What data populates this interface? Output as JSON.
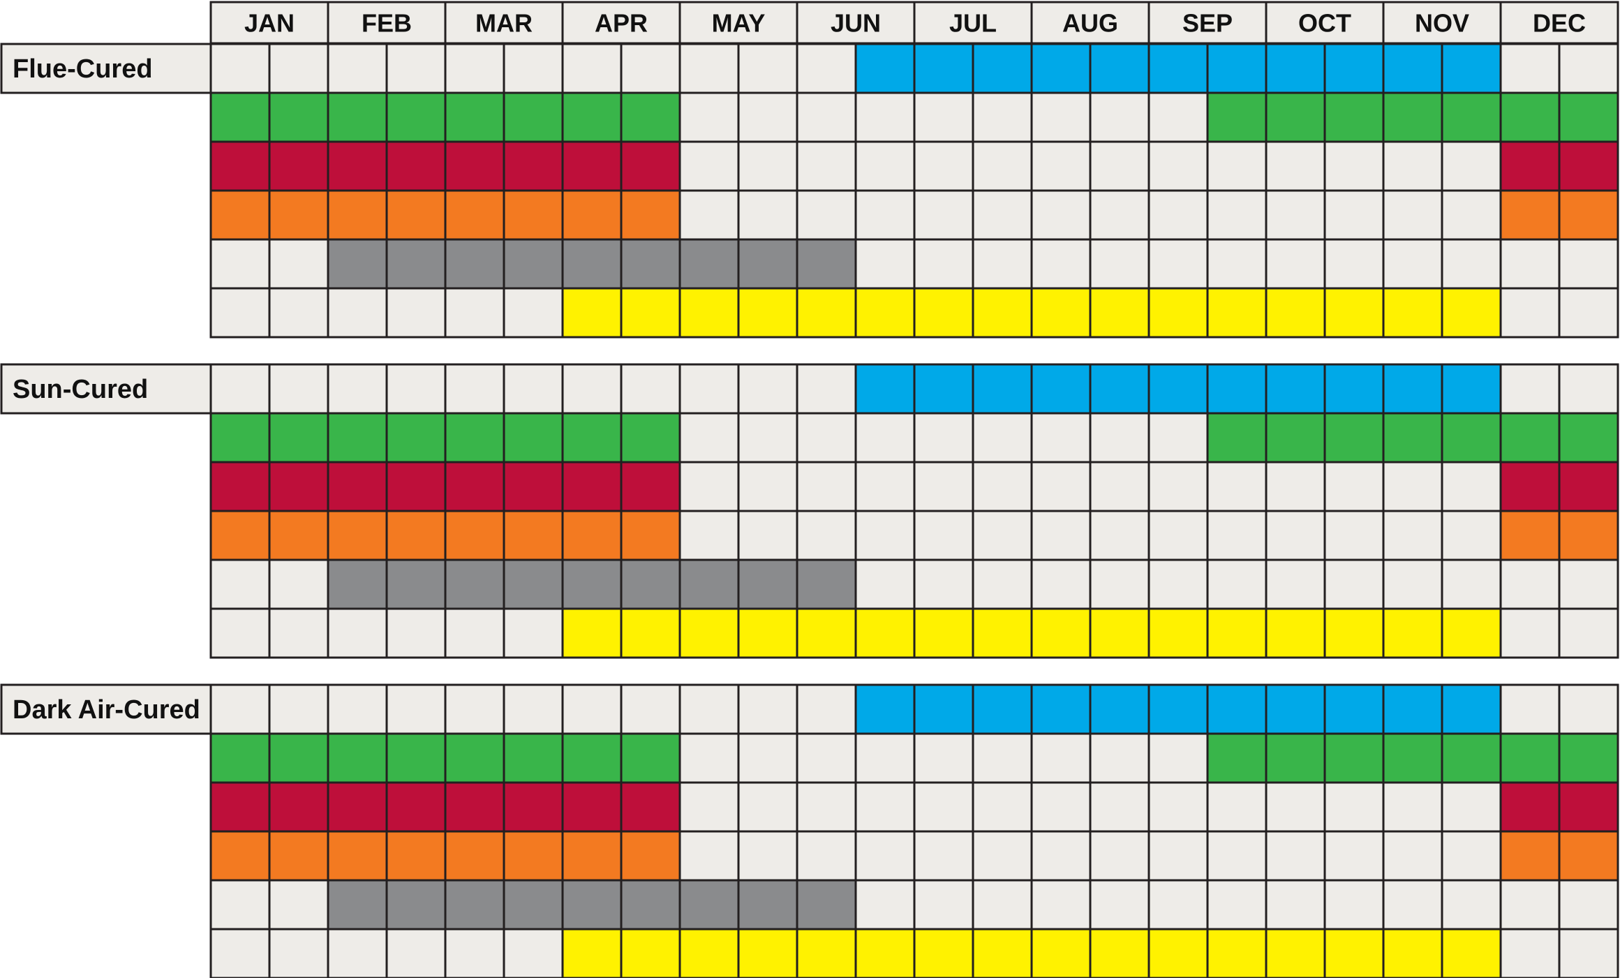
{
  "chart_data": {
    "type": "table",
    "months": [
      "JAN",
      "FEB",
      "MAR",
      "APR",
      "MAY",
      "JUN",
      "JUL",
      "AUG",
      "SEP",
      "OCT",
      "NOV",
      "DEC"
    ],
    "half_months_per_month": 2,
    "empty_color": "#eeece8",
    "grid_color": "#231f20",
    "label_background": "#eeece8",
    "groups": [
      {
        "label": "Flue-Cured",
        "rows": [
          {
            "color": "#00a9e8",
            "active": [
              11,
              12,
              13,
              14,
              15,
              16,
              17,
              18,
              19,
              20,
              21
            ]
          },
          {
            "color": "#39b54a",
            "active": [
              0,
              1,
              2,
              3,
              4,
              5,
              6,
              7,
              17,
              18,
              19,
              20,
              21,
              22,
              23
            ]
          },
          {
            "color": "#be0f3a",
            "active": [
              0,
              1,
              2,
              3,
              4,
              5,
              6,
              7,
              22,
              23
            ]
          },
          {
            "color": "#f37a21",
            "active": [
              0,
              1,
              2,
              3,
              4,
              5,
              6,
              7,
              22,
              23
            ]
          },
          {
            "color": "#8a8b8d",
            "active": [
              2,
              3,
              4,
              5,
              6,
              7,
              8,
              9,
              10
            ]
          },
          {
            "color": "#fff200",
            "active": [
              6,
              7,
              8,
              9,
              10,
              11,
              12,
              13,
              14,
              15,
              16,
              17,
              18,
              19,
              20,
              21
            ]
          }
        ]
      },
      {
        "label": "Sun-Cured",
        "rows": [
          {
            "color": "#00a9e8",
            "active": [
              11,
              12,
              13,
              14,
              15,
              16,
              17,
              18,
              19,
              20,
              21
            ]
          },
          {
            "color": "#39b54a",
            "active": [
              0,
              1,
              2,
              3,
              4,
              5,
              6,
              7,
              17,
              18,
              19,
              20,
              21,
              22,
              23
            ]
          },
          {
            "color": "#be0f3a",
            "active": [
              0,
              1,
              2,
              3,
              4,
              5,
              6,
              7,
              22,
              23
            ]
          },
          {
            "color": "#f37a21",
            "active": [
              0,
              1,
              2,
              3,
              4,
              5,
              6,
              7,
              22,
              23
            ]
          },
          {
            "color": "#8a8b8d",
            "active": [
              2,
              3,
              4,
              5,
              6,
              7,
              8,
              9,
              10
            ]
          },
          {
            "color": "#fff200",
            "active": [
              6,
              7,
              8,
              9,
              10,
              11,
              12,
              13,
              14,
              15,
              16,
              17,
              18,
              19,
              20,
              21
            ]
          }
        ]
      },
      {
        "label": "Dark Air-Cured",
        "rows": [
          {
            "color": "#00a9e8",
            "active": [
              11,
              12,
              13,
              14,
              15,
              16,
              17,
              18,
              19,
              20,
              21
            ]
          },
          {
            "color": "#39b54a",
            "active": [
              0,
              1,
              2,
              3,
              4,
              5,
              6,
              7,
              17,
              18,
              19,
              20,
              21,
              22,
              23
            ]
          },
          {
            "color": "#be0f3a",
            "active": [
              0,
              1,
              2,
              3,
              4,
              5,
              6,
              7,
              22,
              23
            ]
          },
          {
            "color": "#f37a21",
            "active": [
              0,
              1,
              2,
              3,
              4,
              5,
              6,
              7,
              22,
              23
            ]
          },
          {
            "color": "#8a8b8d",
            "active": [
              2,
              3,
              4,
              5,
              6,
              7,
              8,
              9,
              10
            ]
          },
          {
            "color": "#fff200",
            "active": [
              6,
              7,
              8,
              9,
              10,
              11,
              12,
              13,
              14,
              15,
              16,
              17,
              18,
              19,
              20,
              21
            ]
          }
        ]
      }
    ]
  }
}
